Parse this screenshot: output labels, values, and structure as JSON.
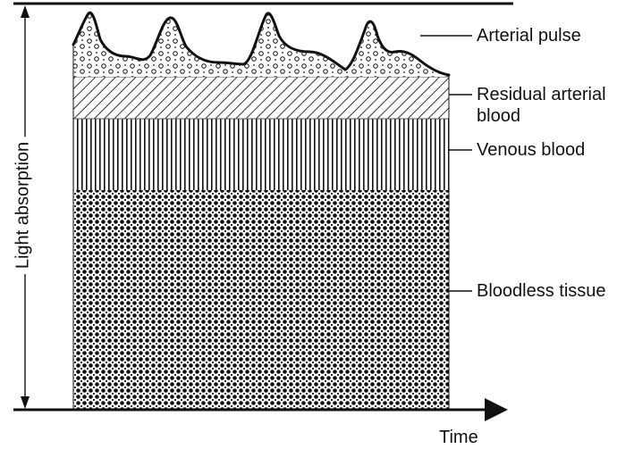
{
  "axes": {
    "y_label": "Light absorption",
    "x_label": "Time"
  },
  "layers": [
    {
      "id": "arterial-pulse",
      "label": "Arterial pulse"
    },
    {
      "id": "residual-arterial-blood",
      "label_line1": "Residual arterial",
      "label_line2": "blood"
    },
    {
      "id": "venous-blood",
      "label": "Venous blood"
    },
    {
      "id": "bloodless-tissue",
      "label": "Bloodless tissue"
    }
  ],
  "colors": {
    "ink": "#111111",
    "background": "#ffffff"
  }
}
